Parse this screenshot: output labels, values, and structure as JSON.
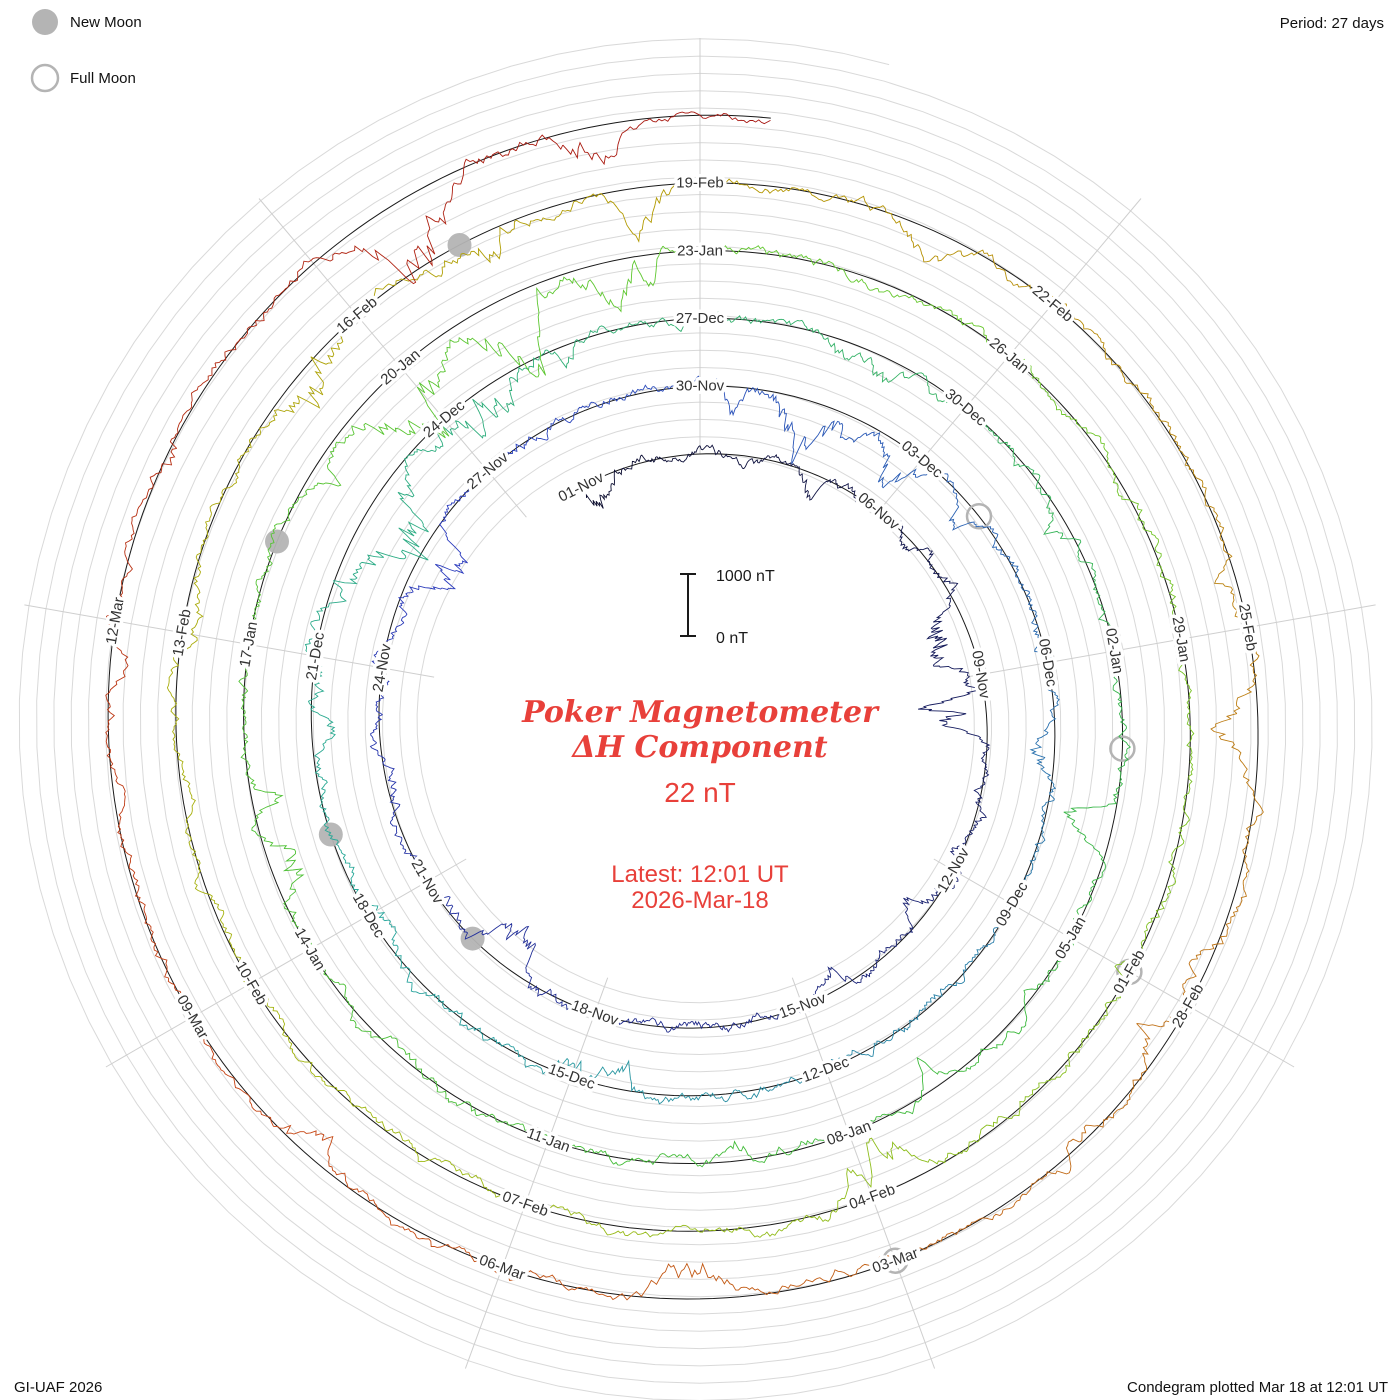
{
  "page": {
    "legend": {
      "new_moon": "New Moon",
      "full_moon": "Full Moon"
    },
    "period_label": "Period: 27 days",
    "credit_left": "GI-UAF 2026",
    "credit_right": "Condegram plotted Mar 18 at 12:01 UT"
  },
  "chart_data": {
    "type": "line",
    "variant": "condegram-spiral",
    "title": "Poker Magnetometer",
    "subtitle": "ΔH Component",
    "latest_value": "22 nT",
    "latest_line1": "Latest: 12:01 UT",
    "latest_line2": "2026-Mar-18",
    "period_days": 27,
    "labels_every_days": 3,
    "rotation_direction": "clockwise",
    "start_label": "01-Nov",
    "end_label": "18-Mar",
    "end_day": 137.5,
    "scale_bar": {
      "top": "1000 nT",
      "bottom": "0 nT",
      "span_nT": 1000
    },
    "annotation_color": "#e8403a",
    "grid_color": "#d9d9d9",
    "baseline_color": "#1a1a1a",
    "moon_marker_color": "#b4b4b4",
    "trace_color_stops": [
      [
        0,
        "#0b0c2e"
      ],
      [
        25,
        "#2b3cc0"
      ],
      [
        47,
        "#28a89b"
      ],
      [
        66,
        "#3cb93c"
      ],
      [
        84,
        "#63c92f"
      ],
      [
        100,
        "#a4b712"
      ],
      [
        110,
        "#b39800"
      ],
      [
        118,
        "#bf7717"
      ],
      [
        127,
        "#c64413"
      ],
      [
        137.5,
        "#a51410"
      ]
    ],
    "date_ticks": [
      [
        0,
        "01-Nov"
      ],
      [
        5,
        "06-Nov"
      ],
      [
        8,
        "09-Nov"
      ],
      [
        11,
        "12-Nov"
      ],
      [
        14,
        "15-Nov"
      ],
      [
        17,
        "18-Nov"
      ],
      [
        20,
        "21-Nov"
      ],
      [
        23,
        "24-Nov"
      ],
      [
        26,
        "27-Nov"
      ],
      [
        29,
        "30-Nov"
      ],
      [
        32,
        "03-Dec"
      ],
      [
        35,
        "06-Dec"
      ],
      [
        38,
        "09-Dec"
      ],
      [
        41,
        "12-Dec"
      ],
      [
        44,
        "15-Dec"
      ],
      [
        47,
        "18-Dec"
      ],
      [
        50,
        "21-Dec"
      ],
      [
        53,
        "24-Dec"
      ],
      [
        56,
        "27-Dec"
      ],
      [
        59,
        "30-Dec"
      ],
      [
        62,
        "02-Jan"
      ],
      [
        65,
        "05-Jan"
      ],
      [
        68,
        "08-Jan"
      ],
      [
        71,
        "11-Jan"
      ],
      [
        74,
        "14-Jan"
      ],
      [
        77,
        "17-Jan"
      ],
      [
        80,
        "20-Jan"
      ],
      [
        83,
        "23-Jan"
      ],
      [
        86,
        "26-Jan"
      ],
      [
        89,
        "29-Jan"
      ],
      [
        92,
        "01-Feb"
      ],
      [
        95,
        "04-Feb"
      ],
      [
        98,
        "07-Feb"
      ],
      [
        101,
        "10-Feb"
      ],
      [
        104,
        "13-Feb"
      ],
      [
        107,
        "16-Feb"
      ],
      [
        110,
        "19-Feb"
      ],
      [
        113,
        "22-Feb"
      ],
      [
        116,
        "25-Feb"
      ],
      [
        119,
        "28-Feb"
      ],
      [
        122,
        "03-Mar"
      ],
      [
        125,
        "06-Mar"
      ],
      [
        128,
        "09-Mar"
      ],
      [
        131,
        "12-Mar"
      ]
    ],
    "moon_events": {
      "new_moon_days": [
        19,
        48,
        78,
        108
      ],
      "full_moon_days": [
        33,
        63,
        92,
        122
      ]
    },
    "activity_bursts": [
      [
        7.3,
        950
      ],
      [
        8.5,
        700
      ],
      [
        24.8,
        520
      ],
      [
        30.3,
        820
      ],
      [
        31.8,
        650
      ],
      [
        43.5,
        400
      ],
      [
        51.8,
        1000
      ],
      [
        53.3,
        880
      ],
      [
        63.8,
        520
      ],
      [
        79.8,
        1250
      ],
      [
        81.1,
        1050
      ],
      [
        82.2,
        750
      ],
      [
        94.8,
        620
      ],
      [
        106.3,
        820
      ],
      [
        108.2,
        540
      ],
      [
        116.8,
        580
      ],
      [
        126.8,
        480
      ],
      [
        134.7,
        1150
      ],
      [
        136.2,
        560
      ]
    ]
  }
}
